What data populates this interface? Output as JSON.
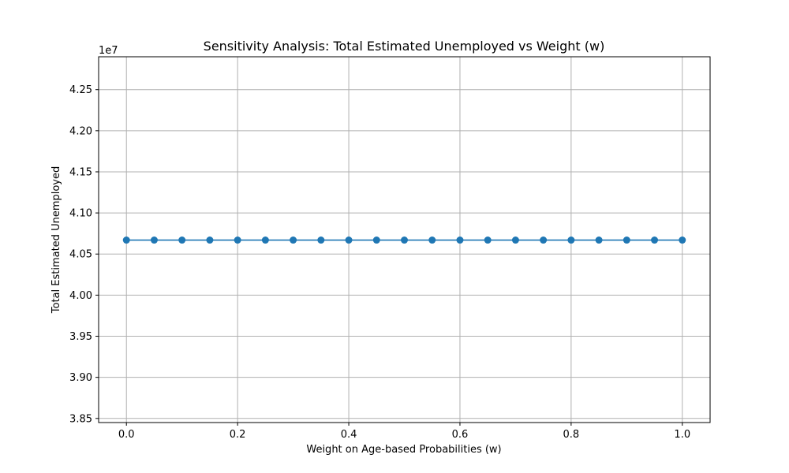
{
  "chart_data": {
    "type": "line",
    "title": "Sensitivity Analysis: Total Estimated Unemployed vs Weight (w)",
    "xlabel": "Weight on Age-based Probabilities (w)",
    "ylabel": "Total Estimated Unemployed",
    "y_offset_label": "1e7",
    "y_scale_multiplier": 10000000,
    "xlim": [
      -0.05,
      1.05
    ],
    "ylim": [
      3.845,
      4.29
    ],
    "x_ticks": [
      0.0,
      0.2,
      0.4,
      0.6,
      0.8,
      1.0
    ],
    "x_tick_labels": [
      "0.0",
      "0.2",
      "0.4",
      "0.6",
      "0.8",
      "1.0"
    ],
    "y_ticks": [
      3.85,
      3.9,
      3.95,
      4.0,
      4.05,
      4.1,
      4.15,
      4.2,
      4.25
    ],
    "y_tick_labels": [
      "3.85",
      "3.90",
      "3.95",
      "4.00",
      "4.05",
      "4.10",
      "4.15",
      "4.20",
      "4.25"
    ],
    "grid": true,
    "series": [
      {
        "color": "#1f77b4",
        "marker": "circle",
        "x": [
          0.0,
          0.05,
          0.1,
          0.15,
          0.2,
          0.25,
          0.3,
          0.35,
          0.4,
          0.45,
          0.5,
          0.55,
          0.6,
          0.65,
          0.7,
          0.75,
          0.8,
          0.85,
          0.9,
          0.95,
          1.0
        ],
        "y": [
          4.067,
          4.067,
          4.067,
          4.067,
          4.067,
          4.067,
          4.067,
          4.067,
          4.067,
          4.067,
          4.067,
          4.067,
          4.067,
          4.067,
          4.067,
          4.067,
          4.067,
          4.067,
          4.067,
          4.067,
          4.067
        ]
      }
    ]
  }
}
